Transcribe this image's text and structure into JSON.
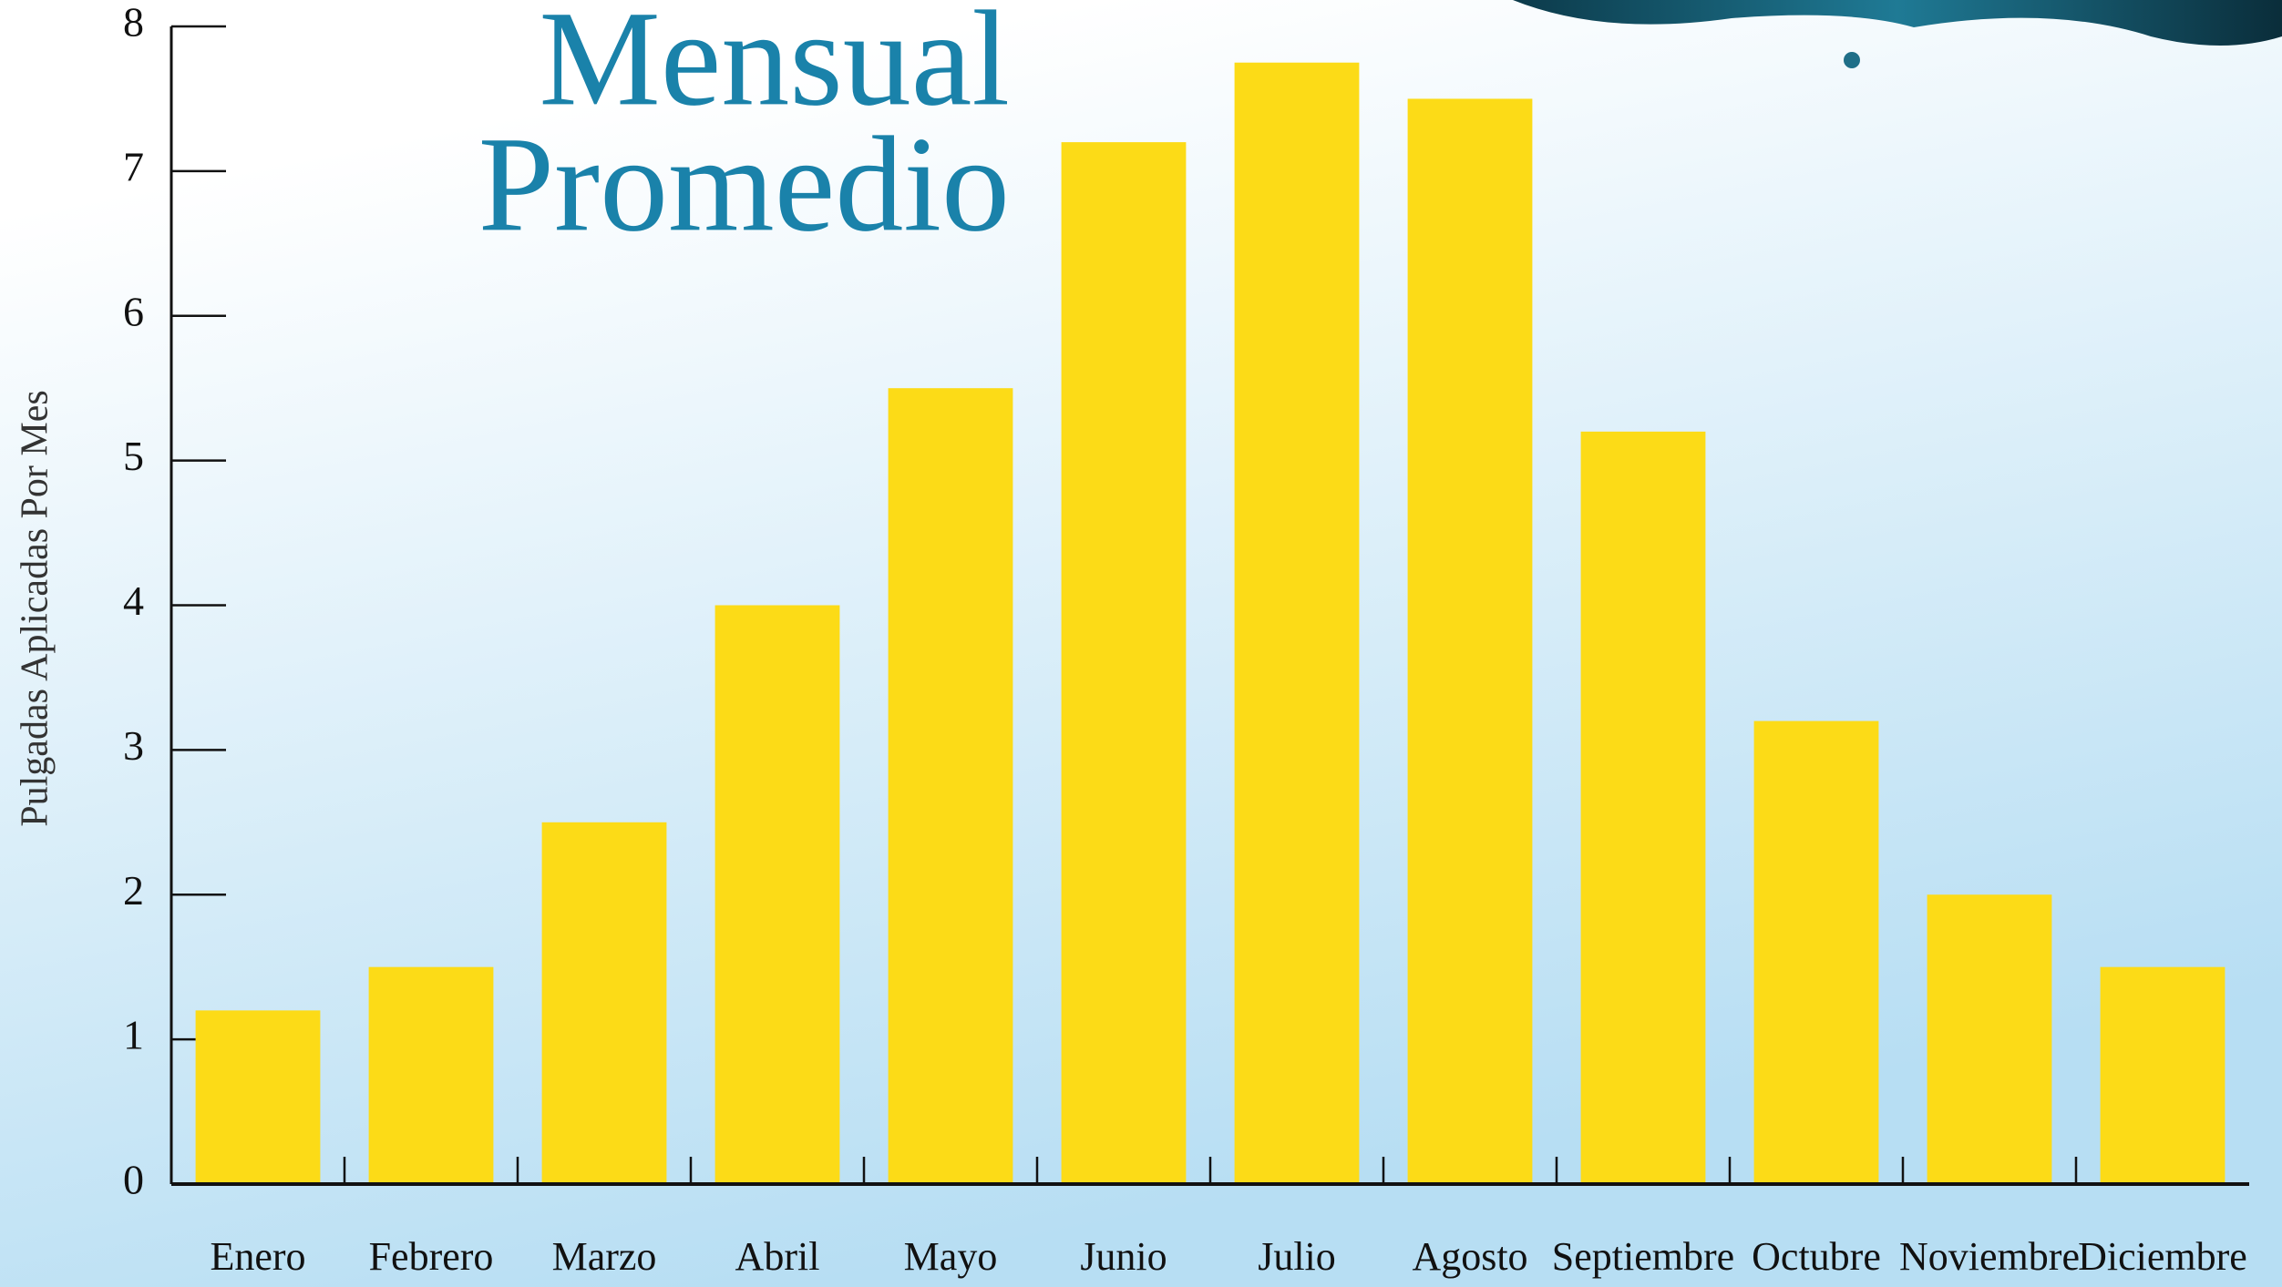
{
  "chart_data": {
    "type": "bar",
    "title": [
      "Mensual",
      "Promedio"
    ],
    "y_label": "Pulgadas Aplicadas Por Mes",
    "categories": [
      "Enero",
      "Febrero",
      "Marzo",
      "Abril",
      "Mayo",
      "Junio",
      "Julio",
      "Agosto",
      "Septiembre",
      "Octubre",
      "Noviembre",
      "Diciembre"
    ],
    "values": [
      1.2,
      1.5,
      2.5,
      4.0,
      5.5,
      7.2,
      7.75,
      7.5,
      5.2,
      3.2,
      2.0,
      1.5
    ],
    "color": "#fcdb17",
    "ylim": [
      0,
      8
    ],
    "yticks": [
      0,
      1,
      2,
      3,
      4,
      5,
      6,
      7,
      8
    ]
  }
}
